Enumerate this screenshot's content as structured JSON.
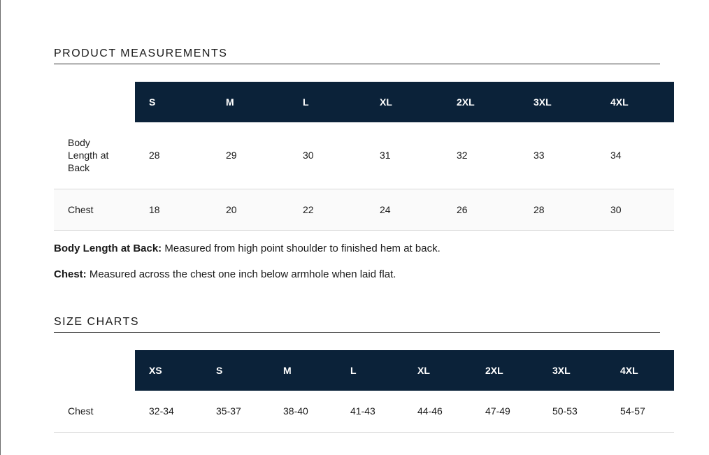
{
  "measurements": {
    "title": "PRODUCT MEASUREMENTS",
    "sizes": [
      "S",
      "M",
      "L",
      "XL",
      "2XL",
      "3XL",
      "4XL"
    ],
    "rows": [
      {
        "label": "Body Length at Back",
        "values": [
          "28",
          "29",
          "30",
          "31",
          "32",
          "33",
          "34"
        ]
      },
      {
        "label": "Chest",
        "values": [
          "18",
          "20",
          "22",
          "24",
          "26",
          "28",
          "30"
        ]
      }
    ],
    "notes": [
      {
        "term": "Body Length at Back:",
        "text": " Measured from high point shoulder to finished hem at back."
      },
      {
        "term": "Chest:",
        "text": " Measured across the chest one inch below armhole when laid flat."
      }
    ]
  },
  "size_charts": {
    "title": "SIZE CHARTS",
    "sizes": [
      "XS",
      "S",
      "M",
      "L",
      "XL",
      "2XL",
      "3XL",
      "4XL"
    ],
    "rows": [
      {
        "label": "Chest",
        "values": [
          "32-34",
          "35-37",
          "38-40",
          "41-43",
          "44-46",
          "47-49",
          "50-53",
          "54-57"
        ]
      }
    ]
  }
}
